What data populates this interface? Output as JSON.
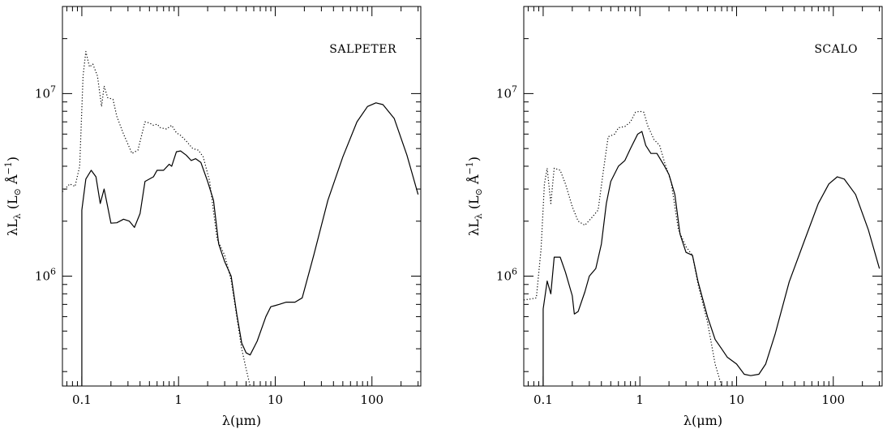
{
  "chart_data": [
    {
      "type": "line",
      "panel_label": "SALPETER",
      "xlabel": "λ(μm)",
      "ylabel": "λL",
      "ylabel_sub": "λ",
      "ylabel_units": "(L",
      "ylabel_units_sub": "⊙",
      "ylabel_units_tail": " Å",
      "ylabel_units_sup": "−1",
      "ylabel_units_close": ")",
      "xscale": "log",
      "yscale": "log",
      "xlim": [
        0.063,
        320
      ],
      "ylim": [
        250000,
        30000000
      ],
      "xticks": [
        {
          "value": 0.1,
          "label": "0.1"
        },
        {
          "value": 1,
          "label": "1"
        },
        {
          "value": 10,
          "label": "10"
        },
        {
          "value": 100,
          "label": "100"
        }
      ],
      "yticks": [
        {
          "value": 1000000,
          "base": "10",
          "exp": "6"
        },
        {
          "value": 10000000,
          "base": "10",
          "exp": "7"
        }
      ],
      "series": [
        {
          "style": "solid",
          "points": [
            [
              0.1,
              250000
            ],
            [
              0.1,
              2300000
            ],
            [
              0.11,
              3400000
            ],
            [
              0.125,
              3800000
            ],
            [
              0.14,
              3500000
            ],
            [
              0.155,
              2500000
            ],
            [
              0.17,
              3000000
            ],
            [
              0.185,
              2400000
            ],
            [
              0.2,
              1950000
            ],
            [
              0.23,
              1960000
            ],
            [
              0.27,
              2050000
            ],
            [
              0.31,
              2000000
            ],
            [
              0.35,
              1850000
            ],
            [
              0.4,
              2200000
            ],
            [
              0.45,
              3300000
            ],
            [
              0.55,
              3500000
            ],
            [
              0.6,
              3800000
            ],
            [
              0.7,
              3800000
            ],
            [
              0.8,
              4100000
            ],
            [
              0.85,
              4000000
            ],
            [
              0.95,
              4800000
            ],
            [
              1.05,
              4850000
            ],
            [
              1.2,
              4600000
            ],
            [
              1.35,
              4300000
            ],
            [
              1.5,
              4400000
            ],
            [
              1.7,
              4200000
            ],
            [
              2.0,
              3300000
            ],
            [
              2.3,
              2600000
            ],
            [
              2.6,
              1500000
            ],
            [
              3.0,
              1200000
            ],
            [
              3.5,
              1000000
            ],
            [
              4.0,
              620000
            ],
            [
              4.5,
              430000
            ],
            [
              5.0,
              380000
            ],
            [
              5.5,
              370000
            ],
            [
              6.5,
              440000
            ],
            [
              8.0,
              600000
            ],
            [
              9.0,
              680000
            ],
            [
              10,
              690000
            ],
            [
              11,
              700000
            ],
            [
              13,
              720000
            ],
            [
              16,
              720000
            ],
            [
              19,
              760000
            ],
            [
              25,
              1300000
            ],
            [
              35,
              2600000
            ],
            [
              50,
              4500000
            ],
            [
              70,
              7000000
            ],
            [
              90,
              8500000
            ],
            [
              110,
              8900000
            ],
            [
              130,
              8700000
            ],
            [
              170,
              7300000
            ],
            [
              230,
              4600000
            ],
            [
              300,
              2800000
            ]
          ]
        },
        {
          "style": "dotted",
          "points": [
            [
              0.063,
              2900000
            ],
            [
              0.075,
              3200000
            ],
            [
              0.085,
              3100000
            ],
            [
              0.095,
              4000000
            ],
            [
              0.103,
              12500000
            ],
            [
              0.11,
              17000000
            ],
            [
              0.12,
              14000000
            ],
            [
              0.13,
              14500000
            ],
            [
              0.145,
              12500000
            ],
            [
              0.16,
              8500000
            ],
            [
              0.17,
              11000000
            ],
            [
              0.185,
              9500000
            ],
            [
              0.21,
              9300000
            ],
            [
              0.23,
              7500000
            ],
            [
              0.27,
              6000000
            ],
            [
              0.33,
              4700000
            ],
            [
              0.38,
              4900000
            ],
            [
              0.45,
              7000000
            ],
            [
              0.5,
              6900000
            ],
            [
              0.55,
              6700000
            ],
            [
              0.6,
              6800000
            ],
            [
              0.65,
              6500000
            ],
            [
              0.75,
              6400000
            ],
            [
              0.85,
              6700000
            ],
            [
              0.95,
              6100000
            ],
            [
              1.05,
              5900000
            ],
            [
              1.2,
              5500000
            ],
            [
              1.4,
              5000000
            ],
            [
              1.6,
              4900000
            ],
            [
              1.8,
              4500000
            ],
            [
              2.1,
              3300000
            ],
            [
              2.5,
              1600000
            ],
            [
              3.0,
              1300000
            ],
            [
              3.5,
              950000
            ],
            [
              4.0,
              600000
            ],
            [
              4.5,
              400000
            ],
            [
              5.0,
              310000
            ],
            [
              5.5,
              250000
            ]
          ]
        }
      ]
    },
    {
      "type": "line",
      "panel_label": "SCALO",
      "xlabel": "λ(μm)",
      "ylabel": "λL",
      "ylabel_sub": "λ",
      "ylabel_units": "(L",
      "ylabel_units_sub": "⊙",
      "ylabel_units_tail": " Å",
      "ylabel_units_sup": "−1",
      "ylabel_units_close": ")",
      "xscale": "log",
      "yscale": "log",
      "xlim": [
        0.063,
        320
      ],
      "ylim": [
        250000,
        30000000
      ],
      "xticks": [
        {
          "value": 0.1,
          "label": "0.1"
        },
        {
          "value": 1,
          "label": "1"
        },
        {
          "value": 10,
          "label": "10"
        },
        {
          "value": 100,
          "label": "100"
        }
      ],
      "yticks": [
        {
          "value": 1000000,
          "base": "10",
          "exp": "6"
        },
        {
          "value": 10000000,
          "base": "10",
          "exp": "7"
        }
      ],
      "series": [
        {
          "style": "solid",
          "points": [
            [
              0.1,
              250000
            ],
            [
              0.1,
              660000
            ],
            [
              0.11,
              940000
            ],
            [
              0.12,
              800000
            ],
            [
              0.13,
              1270000
            ],
            [
              0.15,
              1270000
            ],
            [
              0.17,
              1050000
            ],
            [
              0.2,
              780000
            ],
            [
              0.21,
              620000
            ],
            [
              0.23,
              640000
            ],
            [
              0.27,
              820000
            ],
            [
              0.3,
              1000000
            ],
            [
              0.35,
              1100000
            ],
            [
              0.4,
              1500000
            ],
            [
              0.45,
              2500000
            ],
            [
              0.5,
              3300000
            ],
            [
              0.6,
              4000000
            ],
            [
              0.7,
              4300000
            ],
            [
              0.8,
              5000000
            ],
            [
              0.95,
              6000000
            ],
            [
              1.05,
              6200000
            ],
            [
              1.15,
              5200000
            ],
            [
              1.3,
              4700000
            ],
            [
              1.5,
              4700000
            ],
            [
              1.8,
              4000000
            ],
            [
              2.0,
              3600000
            ],
            [
              2.3,
              2800000
            ],
            [
              2.6,
              1700000
            ],
            [
              3.0,
              1350000
            ],
            [
              3.5,
              1300000
            ],
            [
              4.0,
              930000
            ],
            [
              5.0,
              600000
            ],
            [
              6.0,
              450000
            ],
            [
              7.0,
              400000
            ],
            [
              8.0,
              360000
            ],
            [
              10,
              330000
            ],
            [
              12,
              290000
            ],
            [
              14,
              285000
            ],
            [
              17,
              290000
            ],
            [
              20,
              330000
            ],
            [
              25,
              480000
            ],
            [
              35,
              930000
            ],
            [
              50,
              1550000
            ],
            [
              70,
              2500000
            ],
            [
              90,
              3200000
            ],
            [
              110,
              3500000
            ],
            [
              130,
              3400000
            ],
            [
              170,
              2800000
            ],
            [
              230,
              1800000
            ],
            [
              300,
              1100000
            ]
          ]
        },
        {
          "style": "dotted",
          "points": [
            [
              0.063,
              740000
            ],
            [
              0.075,
              750000
            ],
            [
              0.085,
              760000
            ],
            [
              0.095,
              1400000
            ],
            [
              0.103,
              3200000
            ],
            [
              0.11,
              3900000
            ],
            [
              0.12,
              2500000
            ],
            [
              0.13,
              3900000
            ],
            [
              0.15,
              3800000
            ],
            [
              0.17,
              3200000
            ],
            [
              0.2,
              2400000
            ],
            [
              0.23,
              2000000
            ],
            [
              0.27,
              1900000
            ],
            [
              0.32,
              2100000
            ],
            [
              0.37,
              2300000
            ],
            [
              0.42,
              3800000
            ],
            [
              0.47,
              5800000
            ],
            [
              0.55,
              6000000
            ],
            [
              0.6,
              6500000
            ],
            [
              0.7,
              6600000
            ],
            [
              0.8,
              7000000
            ],
            [
              0.9,
              7900000
            ],
            [
              1.0,
              8000000
            ],
            [
              1.1,
              7900000
            ],
            [
              1.2,
              6700000
            ],
            [
              1.4,
              5600000
            ],
            [
              1.6,
              5200000
            ],
            [
              1.8,
              4200000
            ],
            [
              2.1,
              3300000
            ],
            [
              2.5,
              1800000
            ],
            [
              3.0,
              1450000
            ],
            [
              3.5,
              1300000
            ],
            [
              4.0,
              900000
            ],
            [
              5.0,
              560000
            ],
            [
              6.0,
              330000
            ],
            [
              7.0,
              250000
            ]
          ]
        }
      ]
    }
  ]
}
